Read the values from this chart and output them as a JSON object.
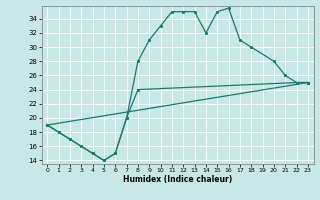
{
  "xlabel": "Humidex (Indice chaleur)",
  "bg_color": "#c8e8e8",
  "grid_color": "#ffffff",
  "line_color": "#1a7a6e",
  "xlim": [
    -0.5,
    23.5
  ],
  "ylim": [
    13.5,
    35.8
  ],
  "yticks": [
    14,
    16,
    18,
    20,
    22,
    24,
    26,
    28,
    30,
    32,
    34
  ],
  "xticks": [
    0,
    1,
    2,
    3,
    4,
    5,
    6,
    7,
    8,
    9,
    10,
    11,
    12,
    13,
    14,
    15,
    16,
    17,
    18,
    19,
    20,
    21,
    22,
    23
  ],
  "line1_x": [
    0,
    1,
    2,
    3,
    4,
    5,
    6,
    7,
    8,
    22,
    23
  ],
  "line1_y": [
    19,
    18,
    17,
    16,
    15,
    14,
    15,
    20,
    24,
    25,
    25
  ],
  "line2_x": [
    0,
    23
  ],
  "line2_y": [
    19,
    25
  ],
  "line3_x": [
    0,
    1,
    2,
    3,
    4,
    5,
    6,
    7,
    8,
    9,
    10,
    11,
    12,
    13,
    14,
    15,
    16,
    17,
    18,
    20,
    21,
    22,
    23
  ],
  "line3_y": [
    19,
    18,
    17,
    16,
    15,
    14,
    15,
    20,
    28,
    31,
    33,
    35,
    35,
    35,
    32,
    35,
    35.5,
    31,
    30,
    28,
    26,
    25,
    25
  ],
  "lw": 0.9,
  "ms": 2.5
}
